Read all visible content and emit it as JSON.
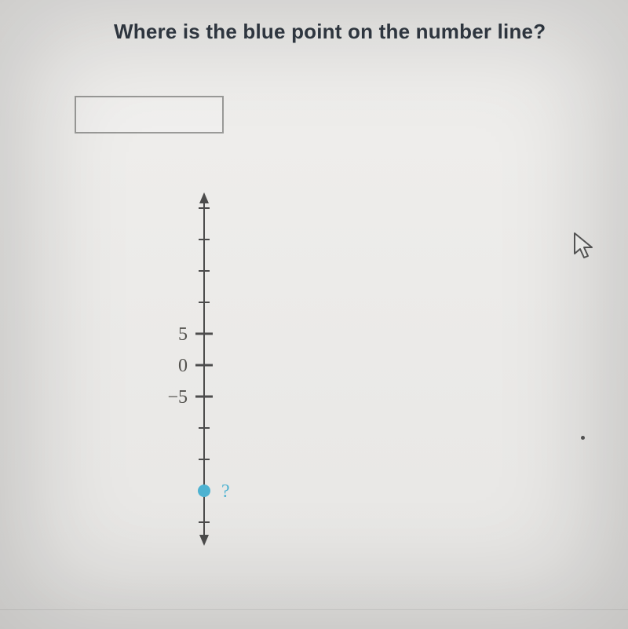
{
  "question": {
    "text": "Where is the blue point on the number line?",
    "title_fontsize": 26,
    "title_color": "#323a44",
    "title_weight": "700"
  },
  "answer_input": {
    "value": "",
    "placeholder": ""
  },
  "number_line": {
    "type": "vertical-number-line",
    "orientation": "vertical",
    "axis_color": "#4c4c4c",
    "axis_width": 2,
    "tick_color": "#4c4c4c",
    "tick_length_major": 22,
    "tick_length_minor": 14,
    "tick_spacing_px": 40,
    "arrow_size": 10,
    "range": {
      "min": -30,
      "max": 30,
      "step": 5
    },
    "ticks": [
      {
        "value": 25,
        "label": "",
        "major": false
      },
      {
        "value": 20,
        "label": "",
        "major": false
      },
      {
        "value": 15,
        "label": "",
        "major": false
      },
      {
        "value": 10,
        "label": "",
        "major": false
      },
      {
        "value": 5,
        "label": "5",
        "major": true
      },
      {
        "value": 0,
        "label": "0",
        "major": true
      },
      {
        "value": -5,
        "label": "-5",
        "major": true
      },
      {
        "value": -10,
        "label": "",
        "major": false
      },
      {
        "value": -15,
        "label": "",
        "major": false
      },
      {
        "value": -20,
        "label": "",
        "major": false
      },
      {
        "value": -25,
        "label": "",
        "major": false
      }
    ],
    "labels_fontsize": 24,
    "labels_color": "#53524e",
    "labels_fontfamily": "serif",
    "point": {
      "value": -20,
      "label": "?",
      "radius": 8,
      "fill_color": "#4db2d1",
      "label_color": "#4db2d1",
      "label_fontsize": 24
    },
    "background_color": "#e8e7e5"
  },
  "cursor_icon": {
    "name": "cursor-icon"
  }
}
